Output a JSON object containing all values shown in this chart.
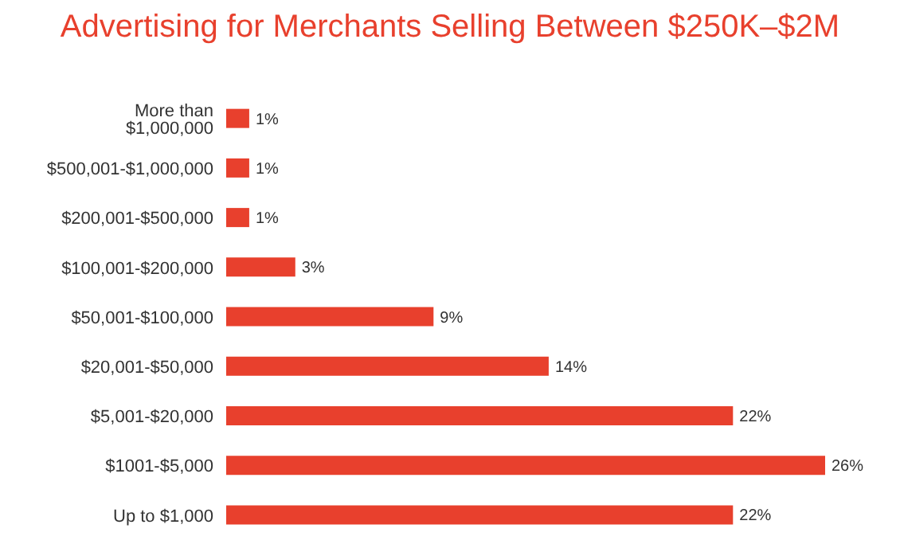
{
  "chart_data": {
    "type": "bar",
    "orientation": "horizontal",
    "title": "Advertising for Merchants Selling Between $250K–$2M",
    "categories": [
      "More than $1,000,000",
      "$500,001-$1,000,000",
      "$200,001-$500,000",
      "$100,001-$200,000",
      "$50,001-$100,000",
      "$20,001-$50,000",
      "$5,001-$20,000",
      "$1001-$5,000",
      "Up to $1,000"
    ],
    "values": [
      1,
      1,
      1,
      3,
      9,
      14,
      22,
      26,
      22
    ],
    "value_labels": [
      "1%",
      "1%",
      "1%",
      "3%",
      "9%",
      "14%",
      "22%",
      "26%",
      "22%"
    ],
    "color": "#e8402d"
  }
}
